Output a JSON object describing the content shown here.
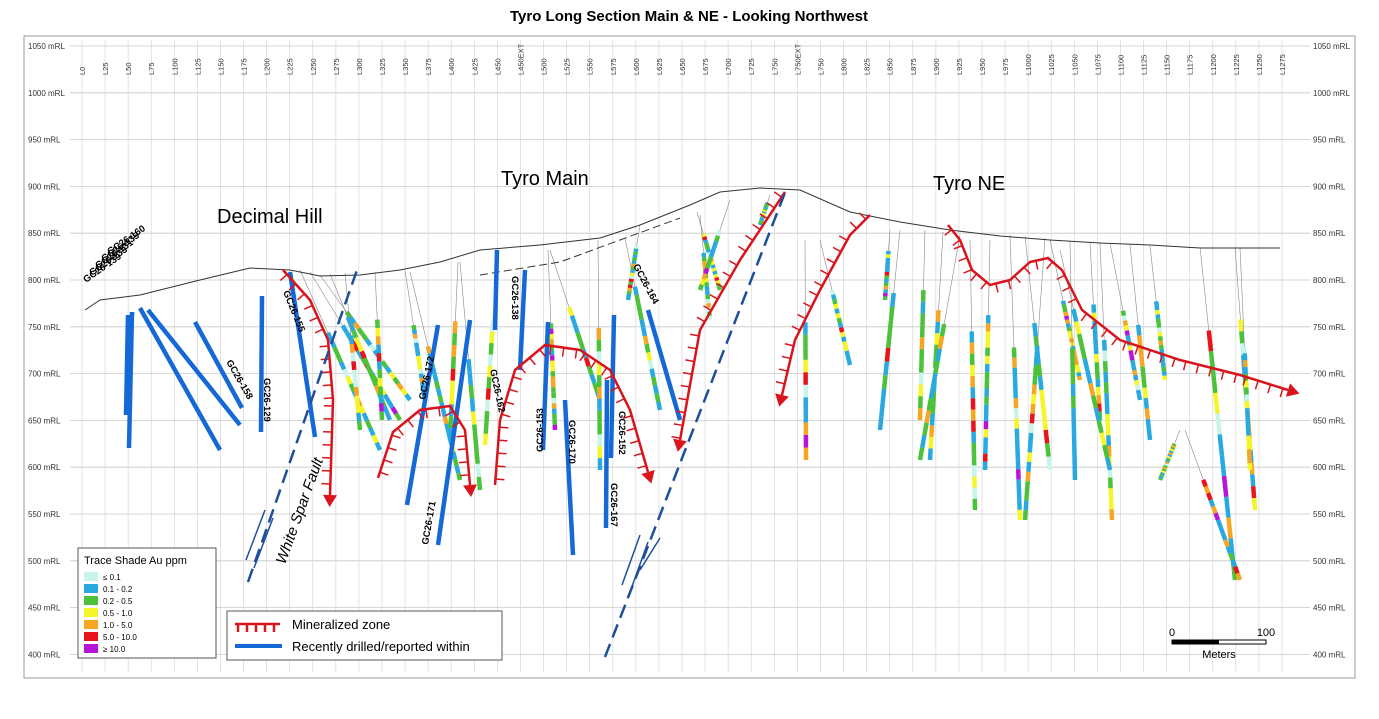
{
  "title": "Tyro Long Section Main & NE - Looking Northwest",
  "elevations": [
    "1050 mRL",
    "1000 mRL",
    "950 mRL",
    "900 mRL",
    "850 mRL",
    "800 mRL",
    "750 mRL",
    "700 mRL",
    "650 mRL",
    "600 mRL",
    "550 mRL",
    "500 mRL",
    "450 mRL",
    "400 mRL"
  ],
  "sections": [
    "L0",
    "L25",
    "L50",
    "L75",
    "L100",
    "L125",
    "L150",
    "L175",
    "L200",
    "L225",
    "L250",
    "L275",
    "L300",
    "L325",
    "L350",
    "L375",
    "L400",
    "L425",
    "L450",
    "L450EXT",
    "L500",
    "L525",
    "L550",
    "L575",
    "L600",
    "L625",
    "L650",
    "L675",
    "L700",
    "L725",
    "L750",
    "L750EXT",
    "L750",
    "L800",
    "L825",
    "L850",
    "L875",
    "L900",
    "L925",
    "L950",
    "L975",
    "L1000",
    "L1025",
    "L1050",
    "L1075",
    "L1100",
    "L1125",
    "L1150",
    "L1175",
    "L1200",
    "L1225",
    "L1250",
    "L1275"
  ],
  "areas": [
    "Decimal Hill",
    "Tyro Main",
    "Tyro NE"
  ],
  "fault_label": "White Spar Fault",
  "holes": [
    "GC26-160",
    "GC26-135",
    "GC26-131",
    "GC26-133",
    "GC26-139",
    "GC26-155",
    "GC26-158",
    "GC26-129",
    "GC26-172",
    "GC26-171",
    "GC26-162",
    "GC26-138",
    "GC26-153",
    "GC26-170",
    "GC26-152",
    "GC26-167",
    "GC26-164"
  ],
  "legend": {
    "title": "Trace Shade Au ppm",
    "items": [
      {
        "label": "≤ 0.1",
        "color": "#c8f4ec"
      },
      {
        "label": "0.1 - 0.2",
        "color": "#29a9e0"
      },
      {
        "label": "0.2 - 0.5",
        "color": "#4cc23a"
      },
      {
        "label": "0.5 - 1.0",
        "color": "#f5f52a"
      },
      {
        "label": "1.0 - 5.0",
        "color": "#f5a623"
      },
      {
        "label": "5.0 - 10.0",
        "color": "#e8141c"
      },
      {
        "label": "≥ 10.0",
        "color": "#b615d8"
      }
    ]
  },
  "key": {
    "mineralized": "Mineralized zone",
    "drilled": "Recently drilled/reported within"
  },
  "scale": {
    "start": "0",
    "end": "100",
    "unit": "Meters"
  }
}
